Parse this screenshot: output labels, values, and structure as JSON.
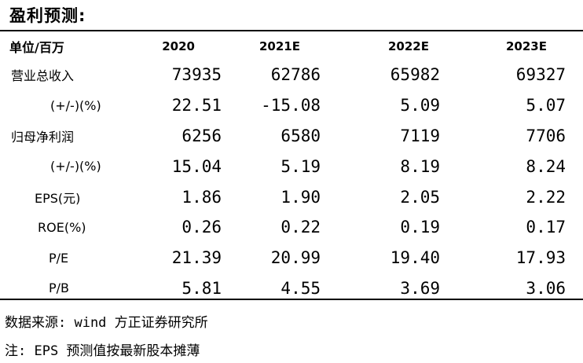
{
  "title": "盈利预测:",
  "header": {
    "unit": "单位/百万",
    "years": [
      "2020",
      "2021E",
      "2022E",
      "2023E"
    ]
  },
  "rows": [
    {
      "label": "营业总收入",
      "values": [
        "73935",
        "62786",
        "65982",
        "69327"
      ]
    },
    {
      "label": "(+/-)(%)",
      "values": [
        "22.51",
        "-15.08",
        "5.09",
        "5.07"
      ]
    },
    {
      "label": "归母净利润",
      "values": [
        "6256",
        "6580",
        "7119",
        "7706"
      ]
    },
    {
      "label": "(+/-)(%)",
      "values": [
        "15.04",
        "5.19",
        "8.19",
        "8.24"
      ]
    },
    {
      "label": "EPS(元)",
      "values": [
        "1.86",
        "1.90",
        "2.05",
        "2.22"
      ]
    },
    {
      "label": "ROE(%)",
      "values": [
        "0.26",
        "0.22",
        "0.19",
        "0.17"
      ]
    },
    {
      "label": "P/E",
      "values": [
        "21.39",
        "20.99",
        "19.40",
        "17.93"
      ]
    },
    {
      "label": "P/B",
      "values": [
        "5.81",
        "4.55",
        "3.69",
        "3.06"
      ]
    }
  ],
  "footnotes": {
    "source": "数据来源: wind 方正证券研究所",
    "note": "注: EPS 预测值按最新股本摊薄"
  }
}
